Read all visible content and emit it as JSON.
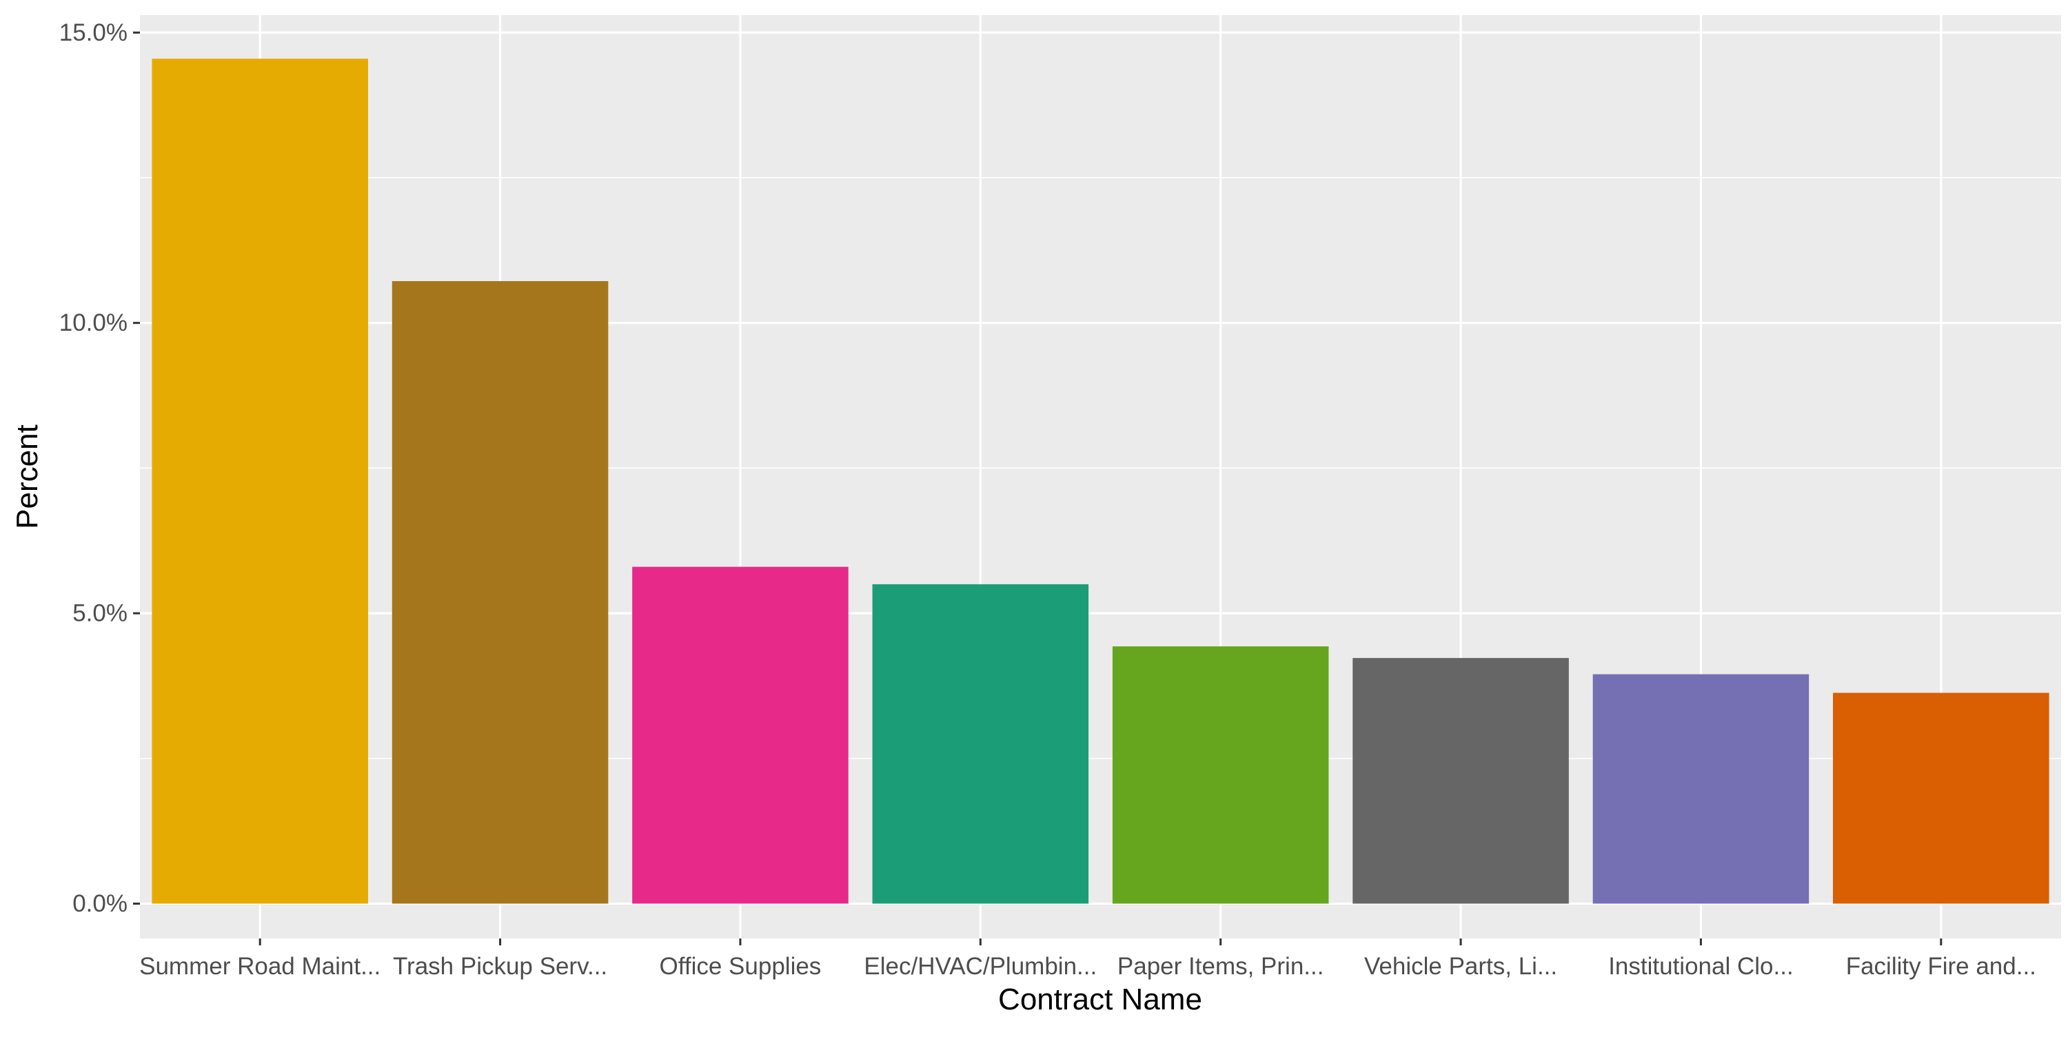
{
  "chart_data": {
    "type": "bar",
    "title": "",
    "xlabel": "Contract Name",
    "ylabel": "Percent",
    "categories": [
      "Summer Road Maint...",
      "Trash Pickup Serv...",
      "Office Supplies",
      "Elec/HVAC/Plumbin...",
      "Paper Items, Prin...",
      "Vehicle Parts, Li...",
      "Institutional Clo...",
      "Facility Fire and..."
    ],
    "values": [
      14.55,
      10.72,
      5.8,
      5.5,
      4.43,
      4.23,
      3.95,
      3.63
    ],
    "colors": [
      "#E6AB02",
      "#A6761D",
      "#E7298A",
      "#1B9E77",
      "#66A61E",
      "#666666",
      "#7570B3",
      "#D95F02"
    ],
    "ylim": [
      -0.6,
      15.3
    ],
    "y_ticks": [
      0,
      5,
      10,
      15
    ],
    "y_tick_labels": [
      "0.0%",
      "5.0%",
      "10.0%",
      "15.0%"
    ],
    "grid": true,
    "legend": "none",
    "panel_background": "#EBEBEB",
    "grid_color": "#FFFFFF"
  }
}
